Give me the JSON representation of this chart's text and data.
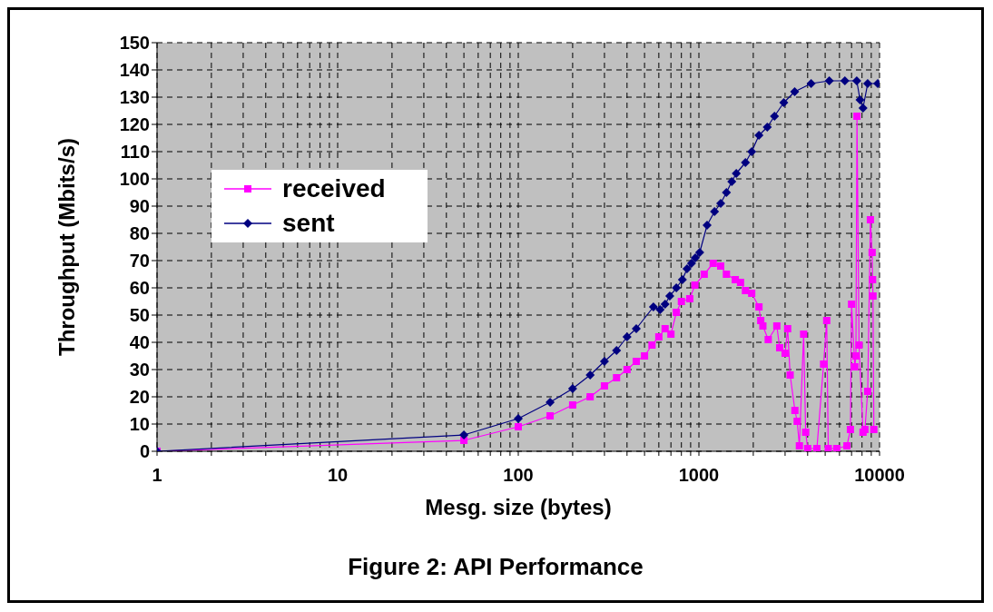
{
  "chart_data": {
    "type": "line",
    "title": "Figure 2: API Performance",
    "xlabel": "Mesg. size (bytes)",
    "ylabel": "Throughput (Mbits/s)",
    "log": "x",
    "grid": true,
    "legend": "left",
    "xlim": [
      1,
      10000
    ],
    "xticks": [
      1,
      {
        "value": 2,
        "label": null
      },
      {
        "value": 3,
        "label": null
      },
      {
        "value": 4,
        "label": null
      },
      {
        "value": 5,
        "label": null
      },
      {
        "value": 6,
        "label": null
      },
      {
        "value": 7,
        "label": null
      },
      {
        "value": 8,
        "label": null
      },
      {
        "value": 9,
        "label": null
      },
      10,
      {
        "value": 20,
        "label": null
      },
      {
        "value": 30,
        "label": null
      },
      {
        "value": 40,
        "label": null
      },
      {
        "value": 50,
        "label": null
      },
      {
        "value": 60,
        "label": null
      },
      {
        "value": 70,
        "label": null
      },
      {
        "value": 80,
        "label": null
      },
      {
        "value": 90,
        "label": null
      },
      100,
      {
        "value": 200,
        "label": null
      },
      {
        "value": 300,
        "label": null
      },
      {
        "value": 400,
        "label": null
      },
      {
        "value": 500,
        "label": null
      },
      {
        "value": 600,
        "label": null
      },
      {
        "value": 700,
        "label": null
      },
      {
        "value": 800,
        "label": null
      },
      {
        "value": 900,
        "label": null
      },
      1000,
      {
        "value": 2000,
        "label": null
      },
      {
        "value": 3000,
        "label": null
      },
      {
        "value": 4000,
        "label": null
      },
      {
        "value": 5000,
        "label": null
      },
      {
        "value": 6000,
        "label": null
      },
      {
        "value": 7000,
        "label": null
      },
      {
        "value": 8000,
        "label": null
      },
      {
        "value": 9000,
        "label": null
      },
      10000
    ],
    "ylim": [
      0,
      150
    ],
    "yticks": [
      0,
      10,
      20,
      30,
      40,
      50,
      60,
      70,
      80,
      90,
      100,
      110,
      120,
      130,
      140,
      150
    ],
    "series": [
      {
        "name": "received",
        "color": "#ff00ff",
        "marker": "square",
        "x": [
          1,
          50,
          100,
          150,
          200,
          250,
          300,
          350,
          400,
          450,
          500,
          550,
          600,
          650,
          700,
          750,
          800,
          890,
          950,
          1070,
          1200,
          1320,
          1420,
          1590,
          1700,
          1810,
          1960,
          2150,
          2200,
          2260,
          2420,
          2700,
          2800,
          3000,
          3100,
          3200,
          3400,
          3500,
          3600,
          3800,
          3900,
          4000,
          4500,
          4900,
          5100,
          5200,
          5800,
          6600,
          6900,
          7000,
          7300,
          7400,
          7500,
          7700,
          8100,
          8300,
          8600,
          8900,
          9100,
          9150,
          9200,
          9300
        ],
        "values": [
          0,
          4,
          9,
          13,
          17,
          20,
          24,
          27,
          30,
          33,
          35,
          39,
          42,
          45,
          43,
          51,
          55,
          56,
          61,
          65,
          69,
          68,
          65,
          63,
          62,
          59,
          58,
          53,
          48,
          46,
          41,
          46,
          38,
          36,
          45,
          28,
          15,
          11,
          2,
          43,
          7,
          1,
          1,
          32,
          48,
          1,
          1,
          2,
          8,
          54,
          31,
          35,
          123,
          39,
          7,
          8,
          22,
          85,
          73,
          63,
          57,
          8
        ]
      },
      {
        "name": "sent",
        "color": "#000080",
        "marker": "diamond",
        "x": [
          1,
          50,
          100,
          150,
          200,
          250,
          300,
          350,
          400,
          450,
          560,
          610,
          650,
          690,
          750,
          810,
          860,
          910,
          955,
          1010,
          1110,
          1220,
          1320,
          1420,
          1520,
          1610,
          1810,
          1960,
          2150,
          2390,
          2620,
          2950,
          3390,
          4180,
          5270,
          6430,
          7480,
          7800,
          8100,
          8600,
          9770
        ],
        "values": [
          0,
          6,
          12,
          18,
          23,
          28,
          33,
          37,
          42,
          45,
          53,
          52,
          54,
          57,
          60,
          63,
          67,
          69,
          71,
          73,
          83,
          88,
          91,
          95,
          99,
          102,
          106,
          110,
          116,
          119,
          123,
          128,
          132,
          135,
          136,
          136,
          136,
          129,
          126,
          135,
          135
        ]
      }
    ]
  }
}
